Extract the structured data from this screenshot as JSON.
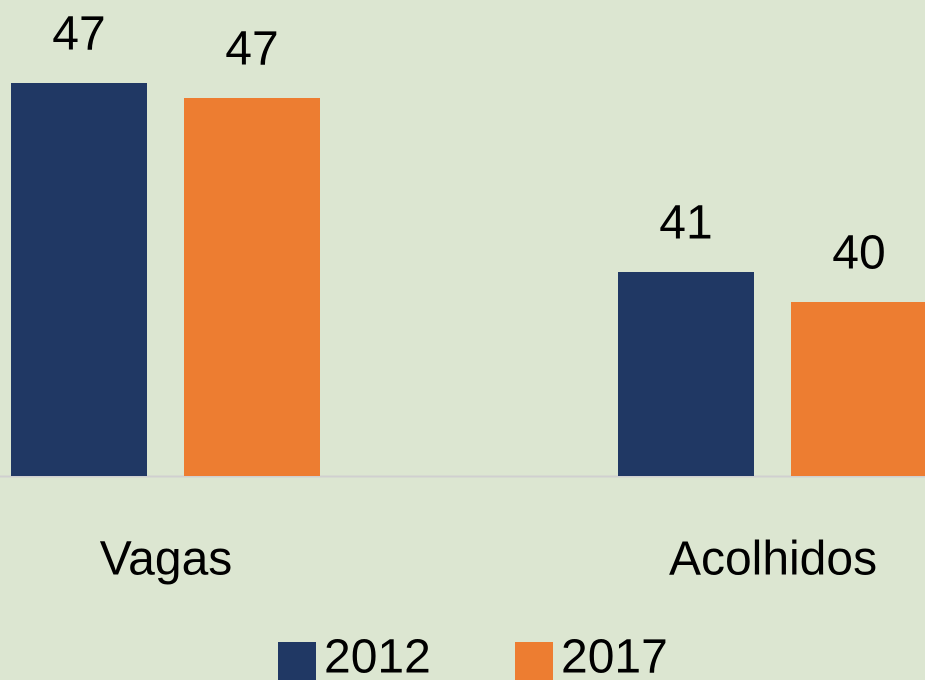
{
  "chart_data": {
    "type": "bar",
    "categories": [
      "Vagas",
      "Acolhidos"
    ],
    "series": [
      {
        "name": "2012",
        "color": "#203864",
        "values": [
          47.1,
          40.8
        ],
        "value_labels": [
          "47",
          "41"
        ]
      },
      {
        "name": "2017",
        "color": "#ed7d31",
        "values": [
          46.6,
          39.8
        ],
        "value_labels": [
          "47",
          "40"
        ]
      }
    ],
    "ylim": [
      34,
      48
    ]
  }
}
